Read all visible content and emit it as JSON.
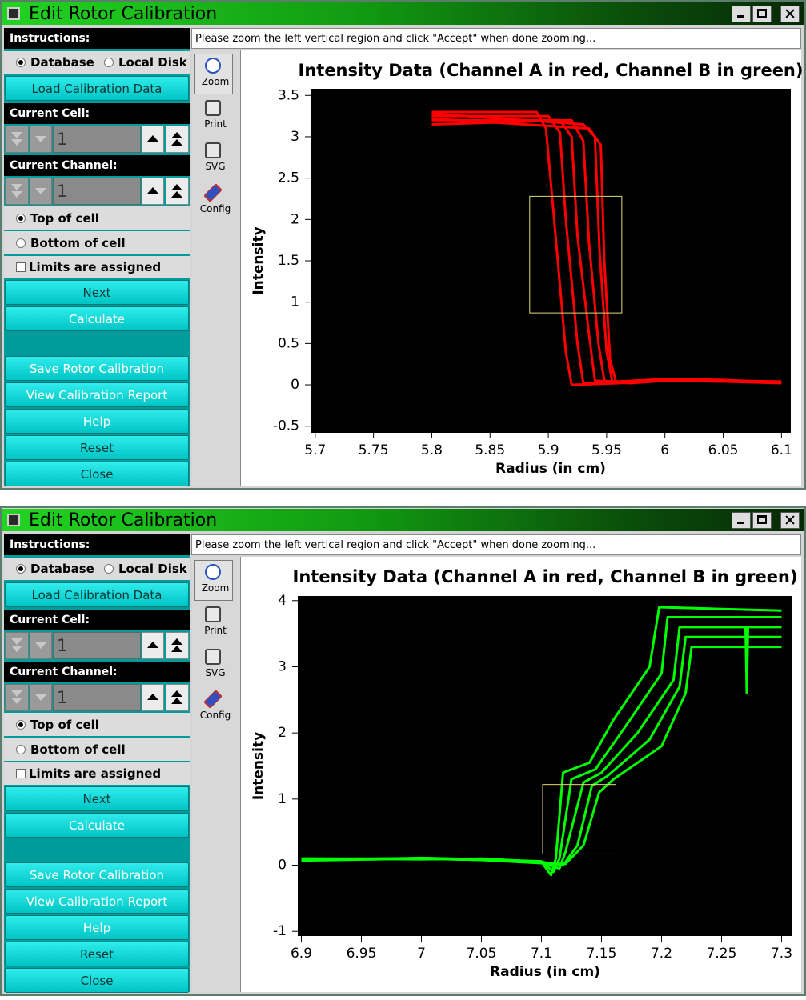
{
  "windows": [
    {
      "title": "Edit Rotor Calibration",
      "instructions_label": "Instructions:",
      "instructions": "Please zoom the left vertical region and click \"Accept\" when done zooming...",
      "source_options": [
        "Database",
        "Local Disk"
      ],
      "load_button": "Load Calibration Data",
      "cell_label": "Current Cell:",
      "cell_value": 1,
      "channel_label": "Current Channel:",
      "channel_value": 1,
      "top_of_cell": "Top of cell",
      "bottom_of_cell": "Bottom of cell",
      "limits_assigned": "Limits are assigned",
      "buttons": [
        "Next",
        "Calculate",
        "Save Rotor Calibration",
        "View Calibration Report",
        "Help",
        "Reset",
        "Close"
      ],
      "tools": [
        "Zoom",
        "Print",
        "SVG",
        "Config"
      ]
    },
    {
      "title": "Edit Rotor Calibration",
      "instructions_label": "Instructions:",
      "instructions": "Please zoom the left vertical region and click \"Accept\" when done zooming...",
      "source_options": [
        "Database",
        "Local Disk"
      ],
      "load_button": "Load Calibration Data",
      "cell_label": "Current Cell:",
      "cell_value": 1,
      "channel_label": "Current Channel:",
      "channel_value": 1,
      "top_of_cell": "Top of cell",
      "bottom_of_cell": "Bottom of cell",
      "limits_assigned": "Limits are assigned",
      "buttons": [
        "Next",
        "Calculate",
        "Save Rotor Calibration",
        "View Calibration Report",
        "Help",
        "Reset",
        "Close"
      ],
      "tools": [
        "Zoom",
        "Print",
        "SVG",
        "Config"
      ]
    }
  ],
  "chart_data": [
    {
      "type": "line",
      "title": "Intensity Data (Channel A in red, Channel B in green)",
      "xlabel": "Radius (in cm)",
      "ylabel": "Intensity",
      "xlim": [
        5.696,
        6.108
      ],
      "ylim": [
        -0.58,
        3.58
      ],
      "xticks": [
        5.7,
        5.75,
        5.8,
        5.85,
        5.9,
        5.95,
        6,
        6.05,
        6.1
      ],
      "yticks": [
        -0.5,
        0,
        0.5,
        1,
        1.5,
        2,
        2.5,
        3,
        3.5
      ],
      "background": "#000000",
      "zoom_box": {
        "xlim": [
          5.884,
          5.963
        ],
        "ylim": [
          0.87,
          2.28
        ],
        "color": "#e6d878"
      },
      "series": [
        {
          "color": "#ff0000",
          "x": [
            5.8,
            5.89,
            5.898,
            5.905,
            5.915,
            5.92,
            5.96,
            6.0,
            6.05,
            6.1
          ],
          "values": [
            3.3,
            3.3,
            3.1,
            2.0,
            0.4,
            0.0,
            0.02,
            0.07,
            0.05,
            0.03
          ]
        },
        {
          "color": "#ff0000",
          "x": [
            5.8,
            5.9,
            5.91,
            5.915,
            5.925,
            5.93,
            5.96,
            6.0,
            6.05,
            6.1
          ],
          "values": [
            3.25,
            3.25,
            3.05,
            2.0,
            0.5,
            0.02,
            0.03,
            0.06,
            0.05,
            0.04
          ]
        },
        {
          "color": "#ff0000",
          "x": [
            5.8,
            5.91,
            5.92,
            5.925,
            5.935,
            5.94,
            5.96,
            6.0,
            6.05,
            6.1
          ],
          "values": [
            3.2,
            3.2,
            3.0,
            1.8,
            0.6,
            0.05,
            0.04,
            0.07,
            0.06,
            0.03
          ]
        },
        {
          "color": "#ff0000",
          "x": [
            5.8,
            5.92,
            5.93,
            5.935,
            5.943,
            5.948,
            5.96,
            6.0,
            6.05,
            6.1
          ],
          "values": [
            3.15,
            3.2,
            2.95,
            1.7,
            0.5,
            0.05,
            0.03,
            0.06,
            0.05,
            0.03
          ]
        },
        {
          "color": "#ff0000",
          "x": [
            5.8,
            5.93,
            5.94,
            5.944,
            5.95,
            5.955,
            5.97,
            6.0,
            6.05,
            6.1
          ],
          "values": [
            3.28,
            3.15,
            3.0,
            1.6,
            0.4,
            0.03,
            0.02,
            0.05,
            0.04,
            0.03
          ]
        },
        {
          "color": "#ff0000",
          "x": [
            5.8,
            5.935,
            5.945,
            5.948,
            5.953,
            5.958,
            5.97,
            6.0,
            6.05,
            6.1
          ],
          "values": [
            3.22,
            3.1,
            2.9,
            1.5,
            0.3,
            0.04,
            0.03,
            0.06,
            0.04,
            0.02
          ]
        }
      ]
    },
    {
      "type": "line",
      "title": "Intensity Data (Channel A in red, Channel B in green)",
      "xlabel": "Radius (in cm)",
      "ylabel": "Intensity",
      "xlim": [
        6.897,
        7.309
      ],
      "ylim": [
        -1.07,
        4.07
      ],
      "xticks": [
        6.9,
        6.95,
        7,
        7.05,
        7.1,
        7.15,
        7.2,
        7.25,
        7.3
      ],
      "yticks": [
        -1,
        0,
        1,
        2,
        3,
        4
      ],
      "background": "#000000",
      "zoom_box": {
        "xlim": [
          7.101,
          7.162
        ],
        "ylim": [
          0.17,
          1.22
        ],
        "color": "#e6d878"
      },
      "series": [
        {
          "color": "#00ff00",
          "x": [
            6.9,
            7.0,
            7.05,
            7.1,
            7.108,
            7.112,
            7.118,
            7.14,
            7.16,
            7.19,
            7.198,
            7.3
          ],
          "values": [
            0.1,
            0.1,
            0.08,
            0.05,
            -0.15,
            0.1,
            1.4,
            1.55,
            2.2,
            3.0,
            3.9,
            3.85
          ]
        },
        {
          "color": "#00ff00",
          "x": [
            6.9,
            7.0,
            7.05,
            7.1,
            7.11,
            7.115,
            7.125,
            7.145,
            7.17,
            7.2,
            7.205,
            7.3
          ],
          "values": [
            0.08,
            0.11,
            0.09,
            0.06,
            -0.1,
            0.1,
            1.3,
            1.45,
            2.1,
            2.9,
            3.75,
            3.75
          ]
        },
        {
          "color": "#00ff00",
          "x": [
            6.9,
            7.0,
            7.05,
            7.1,
            7.115,
            7.12,
            7.135,
            7.15,
            7.18,
            7.21,
            7.215,
            7.3
          ],
          "values": [
            0.09,
            0.1,
            0.08,
            0.04,
            -0.05,
            0.2,
            1.25,
            1.4,
            2.0,
            2.8,
            3.6,
            3.6
          ]
        },
        {
          "color": "#00ff00",
          "x": [
            6.9,
            7.0,
            7.05,
            7.1,
            7.118,
            7.13,
            7.142,
            7.155,
            7.19,
            7.215,
            7.22,
            7.3
          ],
          "values": [
            0.1,
            0.09,
            0.1,
            0.05,
            0.0,
            0.3,
            1.2,
            1.35,
            1.9,
            2.7,
            3.45,
            3.45
          ]
        },
        {
          "color": "#00ff00",
          "x": [
            6.9,
            7.0,
            7.05,
            7.1,
            7.12,
            7.135,
            7.148,
            7.16,
            7.2,
            7.22,
            7.225,
            7.3
          ],
          "values": [
            0.07,
            0.1,
            0.08,
            0.03,
            0.02,
            0.3,
            1.1,
            1.3,
            1.8,
            2.6,
            3.3,
            3.3
          ]
        },
        {
          "color": "#00ff00",
          "x": [
            7.27,
            7.271,
            7.272
          ],
          "values": [
            3.6,
            2.6,
            3.6
          ]
        }
      ]
    }
  ]
}
